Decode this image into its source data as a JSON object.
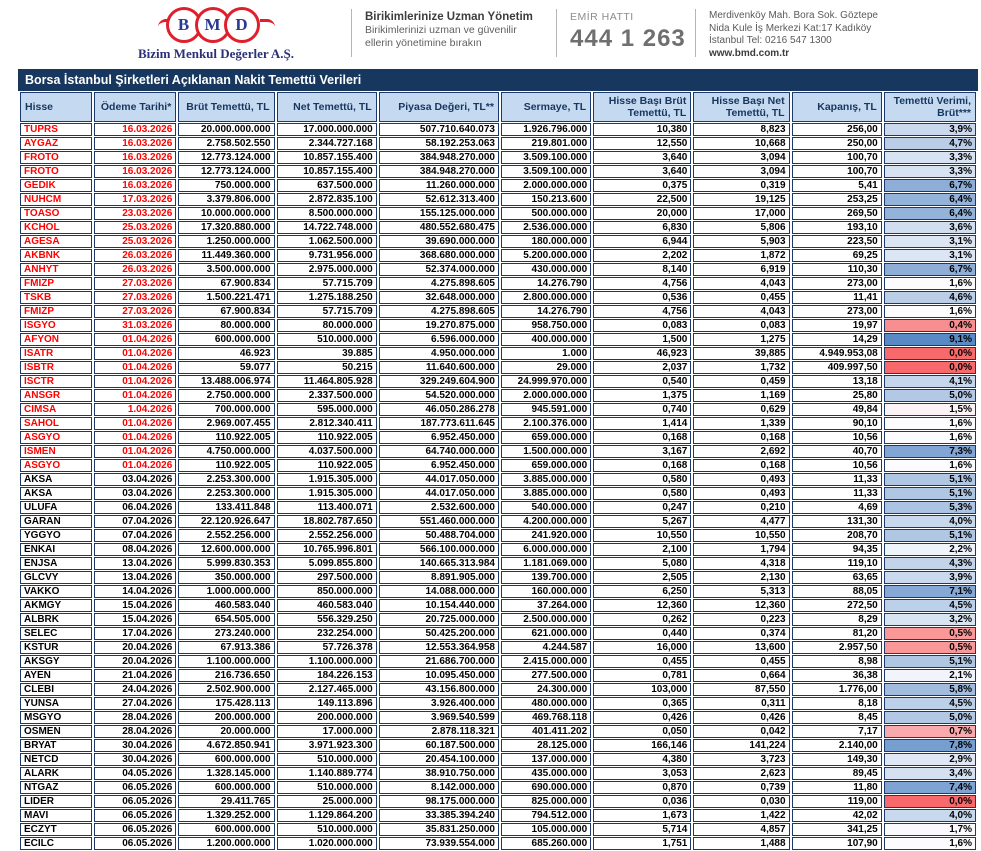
{
  "brand": {
    "letters": [
      "B",
      "M",
      "D"
    ],
    "company": "Bizim Menkul Değerler A.Ş.",
    "slogan_title": "Birikimlerinize Uzman Yönetim",
    "slogan_line1": "Birikimlerinizi uzman ve güvenilir",
    "slogan_line2": "ellerin yönetimine bırakın"
  },
  "contact": {
    "order_line_label": "EMİR HATTI",
    "order_line_number": "444 1 263"
  },
  "address": {
    "line1": "Merdivenköy Mah. Bora Sok. Göztepe",
    "line2": "Nida Kule İş Merkezi Kat:17 Kadıköy",
    "line3": "İstanbul   Tel: 0216 547 1300",
    "website": "www.bmd.com.tr"
  },
  "table": {
    "title": "Borsa İstanbul Şirketleri Açıklanan Nakit Temettü Verileri",
    "columns": [
      "Hisse",
      "Ödeme Tarihi*",
      "Brüt Temettü, TL",
      "Net Temettü, TL",
      "Piyasa Değeri, TL**",
      "Sermaye, TL",
      "Hisse Başı Brüt Temettü, TL",
      "Hisse Başı Net Temettü, TL",
      "Kapanış, TL",
      "Temettü Verimi, Brüt***"
    ],
    "colors": {
      "title_bg": "#17375E",
      "header_bg": "#C5D9F1",
      "border": "#1B3A6B",
      "red_text": "#FF0000",
      "scale": [
        {
          "value": 0.0,
          "color": "#F8696B"
        },
        {
          "value": 1.6,
          "color": "#FCFCFF"
        },
        {
          "value": 9.1,
          "color": "#5A8AC6"
        }
      ]
    },
    "rows": [
      {
        "red": true,
        "y": 3.9,
        "c": [
          "TUPRS",
          "16.03.2026",
          "20.000.000.000",
          "17.000.000.000",
          "507.710.640.073",
          "1.926.796.000",
          "10,380",
          "8,823",
          "256,00",
          "3,9%"
        ]
      },
      {
        "red": true,
        "y": 4.7,
        "c": [
          "AYGAZ",
          "16.03.2026",
          "2.758.502.550",
          "2.344.727.168",
          "58.192.253.063",
          "219.801.000",
          "12,550",
          "10,668",
          "250,00",
          "4,7%"
        ]
      },
      {
        "red": true,
        "y": 3.3,
        "c": [
          "FROTO",
          "16.03.2026",
          "12.773.124.000",
          "10.857.155.400",
          "384.948.270.000",
          "3.509.100.000",
          "3,640",
          "3,094",
          "100,70",
          "3,3%"
        ]
      },
      {
        "red": true,
        "y": 3.3,
        "c": [
          "FROTO",
          "16.03.2026",
          "12.773.124.000",
          "10.857.155.400",
          "384.948.270.000",
          "3.509.100.000",
          "3,640",
          "3,094",
          "100,70",
          "3,3%"
        ]
      },
      {
        "red": true,
        "y": 6.7,
        "c": [
          "GEDIK",
          "16.03.2026",
          "750.000.000",
          "637.500.000",
          "11.260.000.000",
          "2.000.000.000",
          "0,375",
          "0,319",
          "5,41",
          "6,7%"
        ]
      },
      {
        "red": true,
        "y": 6.4,
        "c": [
          "NUHCM",
          "17.03.2026",
          "3.379.806.000",
          "2.872.835.100",
          "52.612.313.400",
          "150.213.600",
          "22,500",
          "19,125",
          "253,25",
          "6,4%"
        ]
      },
      {
        "red": true,
        "y": 6.4,
        "c": [
          "TOASO",
          "23.03.2026",
          "10.000.000.000",
          "8.500.000.000",
          "155.125.000.000",
          "500.000.000",
          "20,000",
          "17,000",
          "269,50",
          "6,4%"
        ]
      },
      {
        "red": true,
        "y": 3.6,
        "c": [
          "KCHOL",
          "25.03.2026",
          "17.320.880.000",
          "14.722.748.000",
          "480.552.680.475",
          "2.536.000.000",
          "6,830",
          "5,806",
          "193,10",
          "3,6%"
        ]
      },
      {
        "red": true,
        "y": 3.1,
        "c": [
          "AGESA",
          "25.03.2026",
          "1.250.000.000",
          "1.062.500.000",
          "39.690.000.000",
          "180.000.000",
          "6,944",
          "5,903",
          "223,50",
          "3,1%"
        ]
      },
      {
        "red": true,
        "y": 3.1,
        "c": [
          "AKBNK",
          "26.03.2026",
          "11.449.360.000",
          "9.731.956.000",
          "368.680.000.000",
          "5.200.000.000",
          "2,202",
          "1,872",
          "69,25",
          "3,1%"
        ]
      },
      {
        "red": true,
        "y": 6.7,
        "c": [
          "ANHYT",
          "26.03.2026",
          "3.500.000.000",
          "2.975.000.000",
          "52.374.000.000",
          "430.000.000",
          "8,140",
          "6,919",
          "110,30",
          "6,7%"
        ]
      },
      {
        "red": true,
        "y": 1.6,
        "c": [
          "FMIZP",
          "27.03.2026",
          "67.900.834",
          "57.715.709",
          "4.275.898.605",
          "14.276.790",
          "4,756",
          "4,043",
          "273,00",
          "1,6%"
        ]
      },
      {
        "red": true,
        "y": 4.6,
        "c": [
          "TSKB",
          "27.03.2026",
          "1.500.221.471",
          "1.275.188.250",
          "32.648.000.000",
          "2.800.000.000",
          "0,536",
          "0,455",
          "11,41",
          "4,6%"
        ]
      },
      {
        "red": true,
        "y": 1.6,
        "c": [
          "FMIZP",
          "27.03.2026",
          "67.900.834",
          "57.715.709",
          "4.275.898.605",
          "14.276.790",
          "4,756",
          "4,043",
          "273,00",
          "1,6%"
        ]
      },
      {
        "red": true,
        "y": 0.4,
        "c": [
          "ISGYO",
          "31.03.2026",
          "80.000.000",
          "80.000.000",
          "19.270.875.000",
          "958.750.000",
          "0,083",
          "0,083",
          "19,97",
          "0,4%"
        ]
      },
      {
        "red": true,
        "y": 9.1,
        "c": [
          "AFYON",
          "01.04.2026",
          "600.000.000",
          "510.000.000",
          "6.596.000.000",
          "400.000.000",
          "1,500",
          "1,275",
          "14,29",
          "9,1%"
        ]
      },
      {
        "red": true,
        "y": 0.0,
        "c": [
          "ISATR",
          "01.04.2026",
          "46.923",
          "39.885",
          "4.950.000.000",
          "1.000",
          "46,923",
          "39,885",
          "4.949.953,08",
          "0,0%"
        ]
      },
      {
        "red": true,
        "y": 0.0,
        "c": [
          "ISBTR",
          "01.04.2026",
          "59.077",
          "50.215",
          "11.640.600.000",
          "29.000",
          "2,037",
          "1,732",
          "409.997,50",
          "0,0%"
        ]
      },
      {
        "red": true,
        "y": 4.1,
        "c": [
          "ISCTR",
          "01.04.2026",
          "13.488.006.974",
          "11.464.805.928",
          "329.249.604.900",
          "24.999.970.000",
          "0,540",
          "0,459",
          "13,18",
          "4,1%"
        ]
      },
      {
        "red": true,
        "y": 5.0,
        "c": [
          "ANSGR",
          "01.04.2026",
          "2.750.000.000",
          "2.337.500.000",
          "54.520.000.000",
          "2.000.000.000",
          "1,375",
          "1,169",
          "25,80",
          "5,0%"
        ]
      },
      {
        "red": true,
        "y": 1.5,
        "c": [
          "CIMSA",
          "1.04.2026",
          "700.000.000",
          "595.000.000",
          "46.050.286.278",
          "945.591.000",
          "0,740",
          "0,629",
          "49,84",
          "1,5%"
        ]
      },
      {
        "red": true,
        "y": 1.6,
        "c": [
          "SAHOL",
          "01.04.2026",
          "2.969.007.455",
          "2.812.340.411",
          "187.773.611.645",
          "2.100.376.000",
          "1,414",
          "1,339",
          "90,10",
          "1,6%"
        ]
      },
      {
        "red": true,
        "y": 1.6,
        "c": [
          "ASGYO",
          "01.04.2026",
          "110.922.005",
          "110.922.005",
          "6.952.450.000",
          "659.000.000",
          "0,168",
          "0,168",
          "10,56",
          "1,6%"
        ]
      },
      {
        "red": true,
        "y": 7.3,
        "c": [
          "ISMEN",
          "01.04.2026",
          "4.750.000.000",
          "4.037.500.000",
          "64.740.000.000",
          "1.500.000.000",
          "3,167",
          "2,692",
          "40,70",
          "7,3%"
        ]
      },
      {
        "red": true,
        "y": 1.6,
        "c": [
          "ASGYO",
          "01.04.2026",
          "110.922.005",
          "110.922.005",
          "6.952.450.000",
          "659.000.000",
          "0,168",
          "0,168",
          "10,56",
          "1,6%"
        ]
      },
      {
        "red": false,
        "y": 5.1,
        "c": [
          "AKSA",
          "03.04.2026",
          "2.253.300.000",
          "1.915.305.000",
          "44.017.050.000",
          "3.885.000.000",
          "0,580",
          "0,493",
          "11,33",
          "5,1%"
        ]
      },
      {
        "red": false,
        "y": 5.1,
        "c": [
          "AKSA",
          "03.04.2026",
          "2.253.300.000",
          "1.915.305.000",
          "44.017.050.000",
          "3.885.000.000",
          "0,580",
          "0,493",
          "11,33",
          "5,1%"
        ]
      },
      {
        "red": false,
        "y": 5.3,
        "c": [
          "ULUFA",
          "06.04.2026",
          "133.411.848",
          "113.400.071",
          "2.532.600.000",
          "540.000.000",
          "0,247",
          "0,210",
          "4,69",
          "5,3%"
        ]
      },
      {
        "red": false,
        "y": 4.0,
        "c": [
          "GARAN",
          "07.04.2026",
          "22.120.926.647",
          "18.802.787.650",
          "551.460.000.000",
          "4.200.000.000",
          "5,267",
          "4,477",
          "131,30",
          "4,0%"
        ]
      },
      {
        "red": false,
        "y": 5.1,
        "c": [
          "YGGYO",
          "07.04.2026",
          "2.552.256.000",
          "2.552.256.000",
          "50.488.704.000",
          "241.920.000",
          "10,550",
          "10,550",
          "208,70",
          "5,1%"
        ]
      },
      {
        "red": false,
        "y": 2.2,
        "c": [
          "ENKAI",
          "08.04.2026",
          "12.600.000.000",
          "10.765.996.801",
          "566.100.000.000",
          "6.000.000.000",
          "2,100",
          "1,794",
          "94,35",
          "2,2%"
        ]
      },
      {
        "red": false,
        "y": 4.3,
        "c": [
          "ENJSA",
          "13.04.2026",
          "5.999.830.353",
          "5.099.855.800",
          "140.665.313.984",
          "1.181.069.000",
          "5,080",
          "4,318",
          "119,10",
          "4,3%"
        ]
      },
      {
        "red": false,
        "y": 3.9,
        "c": [
          "GLCVY",
          "13.04.2026",
          "350.000.000",
          "297.500.000",
          "8.891.905.000",
          "139.700.000",
          "2,505",
          "2,130",
          "63,65",
          "3,9%"
        ]
      },
      {
        "red": false,
        "y": 7.1,
        "c": [
          "VAKKO",
          "14.04.2026",
          "1.000.000.000",
          "850.000.000",
          "14.088.000.000",
          "160.000.000",
          "6,250",
          "5,313",
          "88,05",
          "7,1%"
        ]
      },
      {
        "red": false,
        "y": 4.5,
        "c": [
          "AKMGY",
          "15.04.2026",
          "460.583.040",
          "460.583.040",
          "10.154.440.000",
          "37.264.000",
          "12,360",
          "12,360",
          "272,50",
          "4,5%"
        ]
      },
      {
        "red": false,
        "y": 3.2,
        "c": [
          "ALBRK",
          "15.04.2026",
          "654.505.000",
          "556.329.250",
          "20.725.000.000",
          "2.500.000.000",
          "0,262",
          "0,223",
          "8,29",
          "3,2%"
        ]
      },
      {
        "red": false,
        "y": 0.5,
        "c": [
          "SELEC",
          "17.04.2026",
          "273.240.000",
          "232.254.000",
          "50.425.200.000",
          "621.000.000",
          "0,440",
          "0,374",
          "81,20",
          "0,5%"
        ]
      },
      {
        "red": false,
        "y": 0.5,
        "c": [
          "KSTUR",
          "20.04.2026",
          "67.913.386",
          "57.726.378",
          "12.553.364.958",
          "4.244.587",
          "16,000",
          "13,600",
          "2.957,50",
          "0,5%"
        ]
      },
      {
        "red": false,
        "y": 5.1,
        "c": [
          "AKSGY",
          "20.04.2026",
          "1.100.000.000",
          "1.100.000.000",
          "21.686.700.000",
          "2.415.000.000",
          "0,455",
          "0,455",
          "8,98",
          "5,1%"
        ]
      },
      {
        "red": false,
        "y": 2.1,
        "c": [
          "AYEN",
          "21.04.2026",
          "216.736.650",
          "184.226.153",
          "10.095.450.000",
          "277.500.000",
          "0,781",
          "0,664",
          "36,38",
          "2,1%"
        ]
      },
      {
        "red": false,
        "y": 5.8,
        "c": [
          "CLEBI",
          "24.04.2026",
          "2.502.900.000",
          "2.127.465.000",
          "43.156.800.000",
          "24.300.000",
          "103,000",
          "87,550",
          "1.776,00",
          "5,8%"
        ]
      },
      {
        "red": false,
        "y": 4.5,
        "c": [
          "YUNSA",
          "27.04.2026",
          "175.428.113",
          "149.113.896",
          "3.926.400.000",
          "480.000.000",
          "0,365",
          "0,311",
          "8,18",
          "4,5%"
        ]
      },
      {
        "red": false,
        "y": 5.0,
        "c": [
          "MSGYO",
          "28.04.2026",
          "200.000.000",
          "200.000.000",
          "3.969.540.599",
          "469.768.118",
          "0,426",
          "0,426",
          "8,45",
          "5,0%"
        ]
      },
      {
        "red": false,
        "y": 0.7,
        "c": [
          "OSMEN",
          "28.04.2026",
          "20.000.000",
          "17.000.000",
          "2.878.118.321",
          "401.411.202",
          "0,050",
          "0,042",
          "7,17",
          "0,7%"
        ]
      },
      {
        "red": false,
        "y": 7.8,
        "c": [
          "BRYAT",
          "30.04.2026",
          "4.672.850.941",
          "3.971.923.300",
          "60.187.500.000",
          "28.125.000",
          "166,146",
          "141,224",
          "2.140,00",
          "7,8%"
        ]
      },
      {
        "red": false,
        "y": 2.9,
        "c": [
          "NETCD",
          "30.04.2026",
          "600.000.000",
          "510.000.000",
          "20.454.100.000",
          "137.000.000",
          "4,380",
          "3,723",
          "149,30",
          "2,9%"
        ]
      },
      {
        "red": false,
        "y": 3.4,
        "c": [
          "ALARK",
          "04.05.2026",
          "1.328.145.000",
          "1.140.889.774",
          "38.910.750.000",
          "435.000.000",
          "3,053",
          "2,623",
          "89,45",
          "3,4%"
        ]
      },
      {
        "red": false,
        "y": 7.4,
        "c": [
          "NTGAZ",
          "06.05.2026",
          "600.000.000",
          "510.000.000",
          "8.142.000.000",
          "690.000.000",
          "0,870",
          "0,739",
          "11,80",
          "7,4%"
        ]
      },
      {
        "red": false,
        "y": 0.0,
        "c": [
          "LIDER",
          "06.05.2026",
          "29.411.765",
          "25.000.000",
          "98.175.000.000",
          "825.000.000",
          "0,036",
          "0,030",
          "119,00",
          "0,0%"
        ]
      },
      {
        "red": false,
        "y": 4.0,
        "c": [
          "MAVI",
          "06.05.2026",
          "1.329.252.000",
          "1.129.864.200",
          "33.385.394.240",
          "794.512.000",
          "1,673",
          "1,422",
          "42,02",
          "4,0%"
        ]
      },
      {
        "red": false,
        "y": 1.7,
        "c": [
          "ECZYT",
          "06.05.2026",
          "600.000.000",
          "510.000.000",
          "35.831.250.000",
          "105.000.000",
          "5,714",
          "4,857",
          "341,25",
          "1,7%"
        ]
      },
      {
        "red": false,
        "y": 1.6,
        "c": [
          "ECILC",
          "06.05.2026",
          "1.200.000.000",
          "1.020.000.000",
          "73.939.554.000",
          "685.260.000",
          "1,751",
          "1,488",
          "107,90",
          "1,6%"
        ]
      }
    ]
  }
}
